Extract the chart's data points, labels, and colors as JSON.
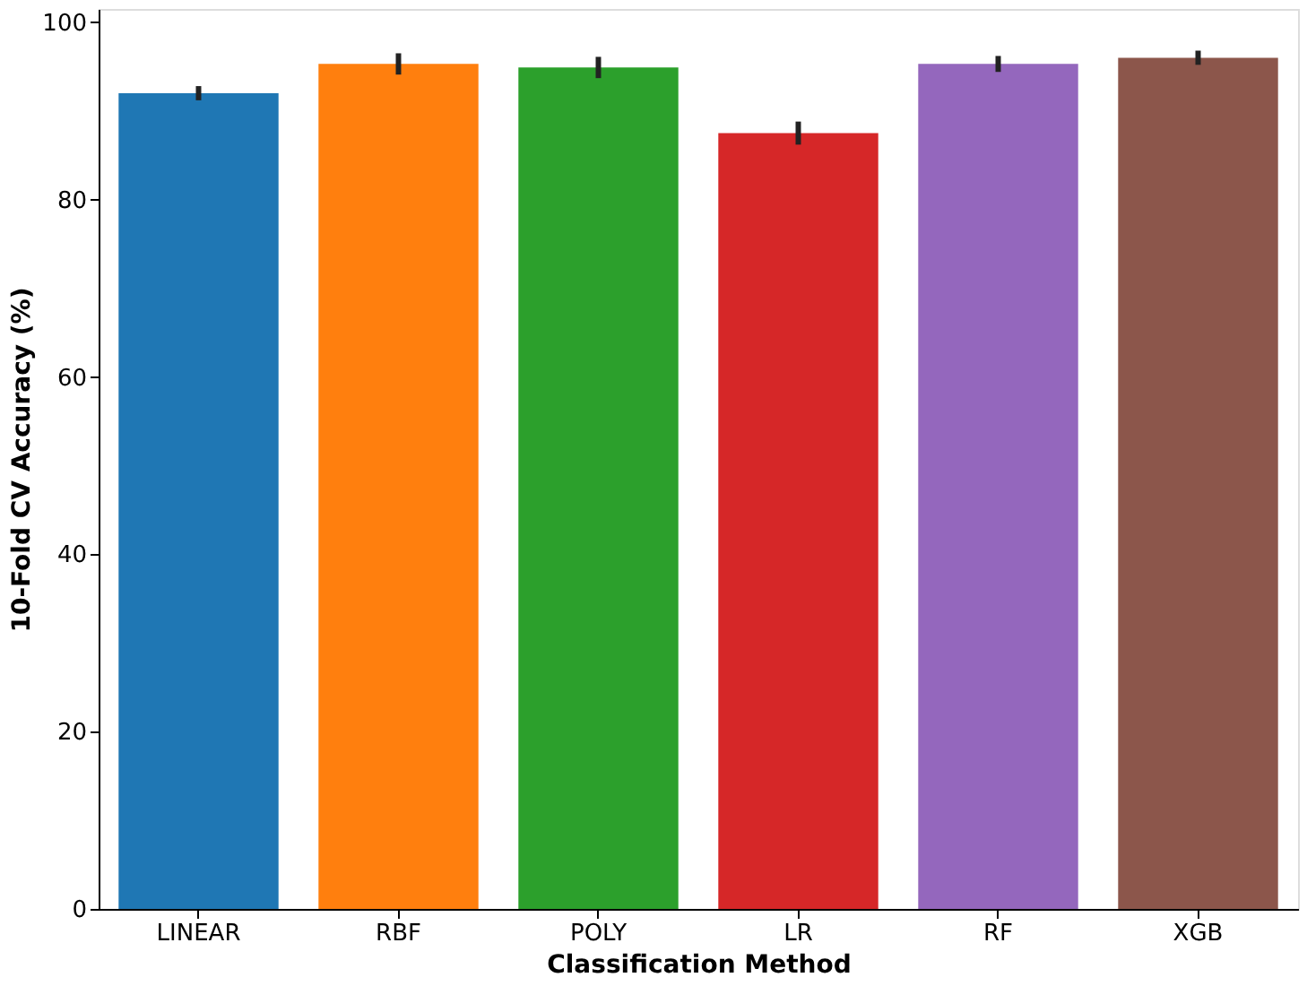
{
  "chart_data": {
    "type": "bar",
    "xlabel": "Classification Method",
    "ylabel": "10-Fold CV Accuracy (%)",
    "categories": [
      "LINEAR",
      "RBF",
      "POLY",
      "LR",
      "RF",
      "XGB"
    ],
    "values": [
      92.0,
      95.3,
      94.9,
      87.5,
      95.3,
      96.0
    ],
    "errors": [
      0.8,
      1.2,
      1.2,
      1.3,
      0.9,
      0.8
    ],
    "colors": [
      "#1f77b4",
      "#ff7f0e",
      "#2ca02c",
      "#d62728",
      "#9467bd",
      "#8c564b"
    ],
    "ylim": [
      0,
      101.5
    ],
    "yticks": [
      0,
      20,
      40,
      60,
      80,
      100
    ],
    "grid": false
  }
}
